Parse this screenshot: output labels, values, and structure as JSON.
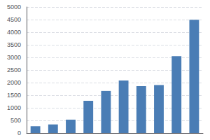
{
  "chart_data": {
    "type": "bar",
    "categories": [
      null,
      null,
      null,
      null,
      null,
      null,
      null,
      null,
      null,
      null
    ],
    "values": [
      270,
      340,
      530,
      1280,
      1670,
      2080,
      1860,
      1900,
      3050,
      4490
    ],
    "color": "#4a7db5",
    "ylim": [
      0,
      5000
    ],
    "yticks": [
      0,
      500,
      1000,
      1500,
      2000,
      2500,
      3000,
      3500,
      4000,
      4500,
      5000
    ],
    "grid": true,
    "tick_labels": "y"
  }
}
